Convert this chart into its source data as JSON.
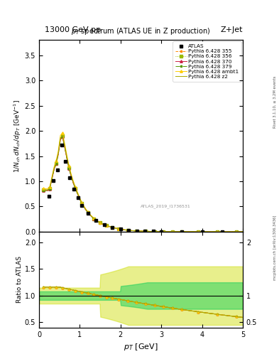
{
  "title_top": "13000 GeV pp",
  "title_right": "Z+Jet",
  "plot_title": "$p_T$ spectrum (ATLAS UE in Z production)",
  "xlabel": "$p_T$ [GeV]",
  "ylabel_main": "$1/N_{ch}\\,dN_{ch}/dp_T$ [GeV$^{-1}$]",
  "ylabel_ratio": "Ratio to ATLAS",
  "right_label_top": "Rivet 3.1.10, ≥ 3.2M events",
  "right_label_bot": "mcplots.cern.ch [arXiv:1306.3436]",
  "watermark": "ATLAS_2019_I1736531",
  "xlim": [
    0,
    5
  ],
  "ylim_main": [
    0,
    3.8
  ],
  "ylim_ratio": [
    0.4,
    2.2
  ],
  "atlas_x": [
    0.25,
    0.35,
    0.45,
    0.55,
    0.65,
    0.75,
    0.85,
    0.95,
    1.05,
    1.2,
    1.4,
    1.6,
    1.8,
    2.0,
    2.2,
    2.4,
    2.6,
    2.8,
    3.0,
    3.5,
    4.0,
    4.5
  ],
  "atlas_y": [
    0.7,
    1.02,
    1.22,
    1.72,
    1.4,
    1.07,
    0.85,
    0.68,
    0.52,
    0.36,
    0.22,
    0.14,
    0.09,
    0.055,
    0.03,
    0.018,
    0.011,
    0.007,
    0.004,
    0.002,
    0.001,
    0.0005
  ],
  "atlas_color": "#000000",
  "series": [
    {
      "label": "Pythia 6.428 355",
      "color": "#ff8800",
      "marker": "*",
      "linestyle": "--",
      "scale": 1.16
    },
    {
      "label": "Pythia 6.428 356",
      "color": "#99bb00",
      "marker": "s",
      "linestyle": ":",
      "scale": 1.18
    },
    {
      "label": "Pythia 6.428 370",
      "color": "#cc2244",
      "marker": "^",
      "linestyle": "-",
      "scale": 1.17
    },
    {
      "label": "Pythia 6.428 379",
      "color": "#559900",
      "marker": "*",
      "linestyle": "-.",
      "scale": 1.17
    },
    {
      "label": "Pythia 6.428 ambt1",
      "color": "#ffcc00",
      "marker": "^",
      "linestyle": "-",
      "scale": 1.22
    },
    {
      "label": "Pythia 6.428 z2",
      "color": "#aaaa00",
      "marker": null,
      "linestyle": "-",
      "scale": 1.19
    }
  ],
  "bg_color": "#ffffff"
}
